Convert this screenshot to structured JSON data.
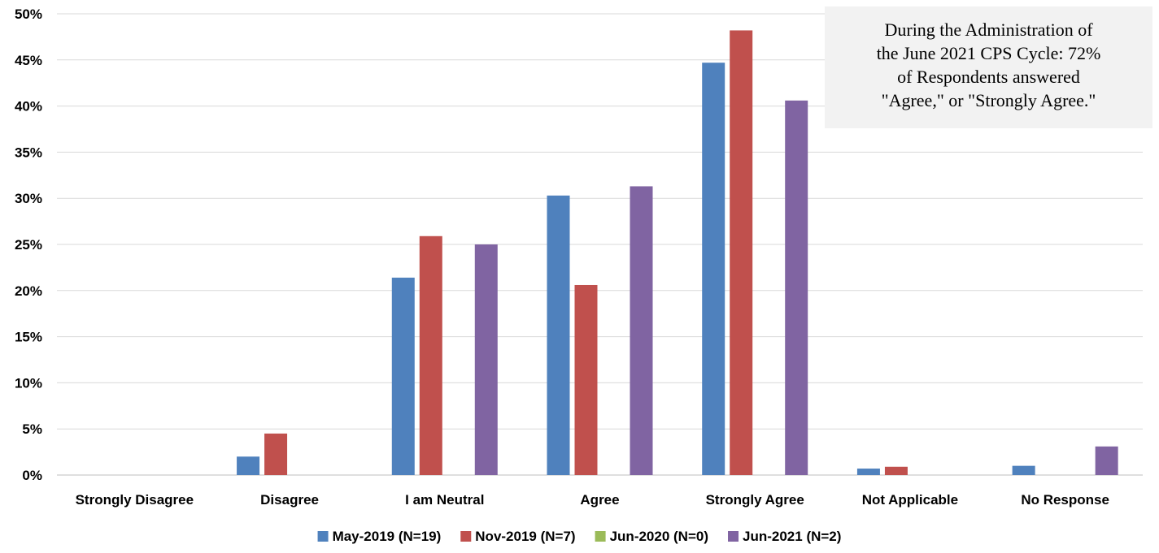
{
  "chart_data": {
    "type": "bar",
    "categories": [
      "Strongly Disagree",
      "Disagree",
      "I am Neutral",
      "Agree",
      "Strongly Agree",
      "Not Applicable",
      "No Response"
    ],
    "series": [
      {
        "name": "May-2019 (N=19)",
        "color": "#4f81bd",
        "values": [
          0,
          2.0,
          21.4,
          30.3,
          44.7,
          0.7,
          1.0
        ]
      },
      {
        "name": "Nov-2019 (N=7)",
        "color": "#c0504d",
        "values": [
          0,
          4.5,
          25.9,
          20.6,
          48.2,
          0.9,
          0
        ]
      },
      {
        "name": "Jun-2020 (N=0)",
        "color": "#9bbb59",
        "values": [
          0,
          0,
          0,
          0,
          0,
          0,
          0
        ]
      },
      {
        "name": "Jun-2021 (N=2)",
        "color": "#8064a2",
        "values": [
          0,
          0,
          25.0,
          31.3,
          40.6,
          0,
          3.1
        ]
      }
    ],
    "y_ticks": [
      "0%",
      "5%",
      "10%",
      "15%",
      "20%",
      "25%",
      "30%",
      "35%",
      "40%",
      "45%",
      "50%"
    ],
    "ylim": [
      0,
      50
    ],
    "grid": true,
    "legend_position": "bottom",
    "annotation": {
      "lines": [
        "During the Administration of",
        "the June 2021 CPS Cycle: 72%",
        "of Respondents answered",
        "\"Agree,\" or \"Strongly Agree.\""
      ]
    }
  }
}
